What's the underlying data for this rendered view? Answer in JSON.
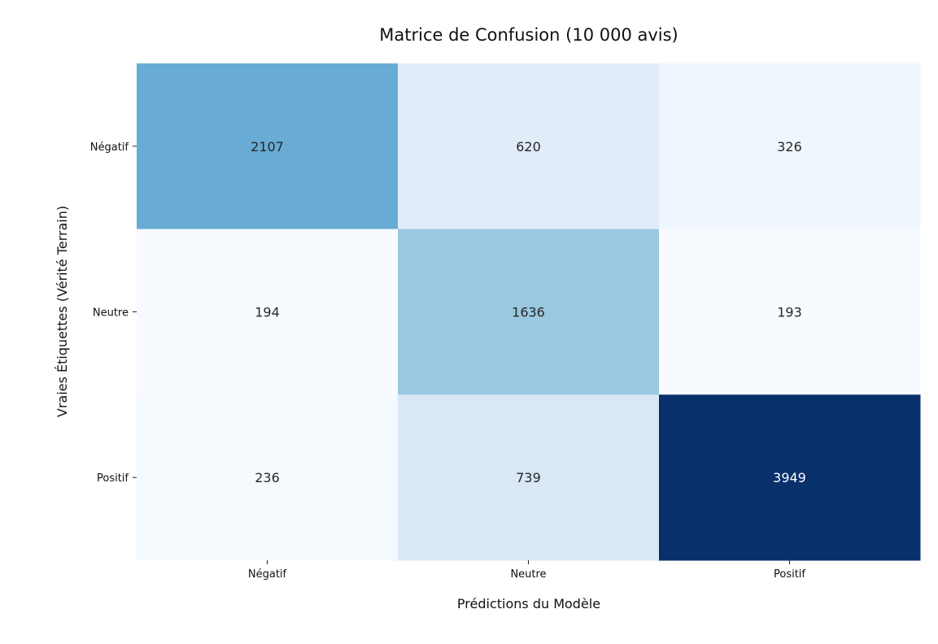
{
  "chart_data": {
    "type": "heatmap",
    "title": "Matrice de Confusion (10 000 avis)",
    "xlabel": "Prédictions du Modèle",
    "ylabel": "Vraies Étiquettes (Vérité Terrain)",
    "x_categories": [
      "Négatif",
      "Neutre",
      "Positif"
    ],
    "y_categories": [
      "Négatif",
      "Neutre",
      "Positif"
    ],
    "values": [
      [
        2107,
        620,
        326
      ],
      [
        194,
        1636,
        193
      ],
      [
        236,
        739,
        3949
      ]
    ],
    "colormap": "Blues",
    "colorbar": false,
    "grid": false
  }
}
